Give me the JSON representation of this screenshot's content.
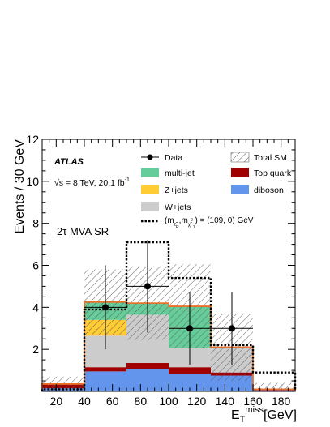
{
  "chart_data": {
    "type": "bar",
    "stacked": true,
    "xlabel_main": "E",
    "xlabel_sub": "T",
    "xlabel_sup": "miss",
    "xlabel_unit": "[GeV]",
    "ylabel": "Events / 30 GeV",
    "xlim": [
      10,
      190
    ],
    "ylim": [
      0,
      12
    ],
    "x_ticks": [
      20,
      40,
      60,
      80,
      100,
      120,
      140,
      160,
      180
    ],
    "y_ticks": [
      2,
      4,
      6,
      8,
      10,
      12
    ],
    "bin_edges": [
      10,
      40,
      70,
      100,
      130,
      160,
      190
    ],
    "series": [
      {
        "name": "diboson",
        "color": "#6495ed",
        "values": [
          0.15,
          0.95,
          1.05,
          0.85,
          0.75,
          0.05
        ]
      },
      {
        "name": "Top quark",
        "color": "#a00000",
        "values": [
          0.2,
          0.2,
          0.3,
          0.3,
          0.15,
          0.05
        ]
      },
      {
        "name": "W+jets",
        "color": "#cccccc",
        "values": [
          0.0,
          1.5,
          2.3,
          0.9,
          1.2,
          0.0
        ]
      },
      {
        "name": "Z+jets",
        "color": "#ffcc33",
        "values": [
          0.0,
          0.75,
          0.0,
          0.0,
          0.0,
          0.0
        ]
      },
      {
        "name": "multi-jet",
        "color": "#66cc99",
        "values": [
          0.0,
          0.85,
          0.55,
          2.0,
          0.0,
          0.0
        ]
      }
    ],
    "total_sm": {
      "name": "Total SM",
      "values": [
        0.35,
        4.25,
        4.2,
        4.05,
        2.1,
        0.1
      ],
      "unc": [
        0.35,
        1.55,
        1.75,
        2.0,
        1.6,
        0.3
      ]
    },
    "signal": {
      "name_prefix": "(m",
      "sub1": "τ̃",
      "sub1b": "R",
      "comma": ",m",
      "sub2": "χ̃",
      "sub2sup": "0",
      "sub2b": "1",
      "name_suffix": ") = (109, 0) GeV",
      "values": [
        0.1,
        3.9,
        7.1,
        5.4,
        2.2,
        0.9
      ]
    },
    "data": {
      "name": "Data",
      "x": [
        55,
        85,
        115,
        145
      ],
      "y": [
        4,
        5,
        3,
        3
      ],
      "err": [
        2.0,
        2.2,
        1.73,
        1.73
      ],
      "xerr": 15
    },
    "atlas_label": "ATLAS",
    "energy_label": "√s = 8 TeV, 20.1 fb",
    "energy_sup": "-1",
    "region_label": "2τ MVA SR"
  }
}
